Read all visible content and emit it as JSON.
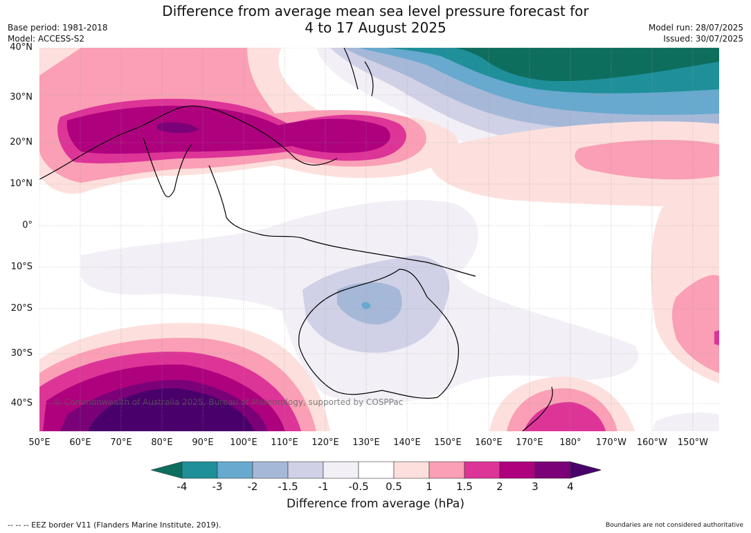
{
  "title_line1": "Difference from average mean sea level pressure forecast for",
  "title_line2": "4 to 17 August 2025",
  "base_period": "Base period: 1981-2018",
  "model": "Model: ACCESS-S2",
  "model_run": "Model run: 28/07/2025",
  "issued": "Issued: 30/07/2025",
  "lat_labels": [
    "40°N",
    "30°N",
    "20°N",
    "10°N",
    "0°",
    "10°S",
    "20°S",
    "30°S",
    "40°S"
  ],
  "lon_labels": [
    "50°E",
    "60°E",
    "70°E",
    "80°E",
    "90°E",
    "100°E",
    "110°E",
    "120°E",
    "130°E",
    "140°E",
    "150°E",
    "160°E",
    "170°E",
    "180°",
    "170°W",
    "160°W",
    "150°W"
  ],
  "copyright": "© Commonwealth of Australia 2025, Bureau of Meteorology, supported by COSPPac",
  "colorbar": {
    "title": "Difference from average (hPa)",
    "tick_labels": [
      "-4",
      "-3",
      "-2",
      "-1.5",
      "-1",
      "-0.5",
      "0.5",
      "1",
      "1.5",
      "2",
      "3",
      "4"
    ],
    "colors": [
      "#0e6e5e",
      "#1f8f99",
      "#67a9cf",
      "#a6b8d8",
      "#d0d1e6",
      "#f2eff6",
      "#ffffff",
      "#fde0dd",
      "#fa9fb5",
      "#dd3497",
      "#ae017e",
      "#7a0177",
      "#49006a"
    ]
  },
  "footer_left": "--  --  -- EEZ border V11 (Flanders Marine Institute, 2019).",
  "footer_right": "Boundaries are not considered authoritative"
}
